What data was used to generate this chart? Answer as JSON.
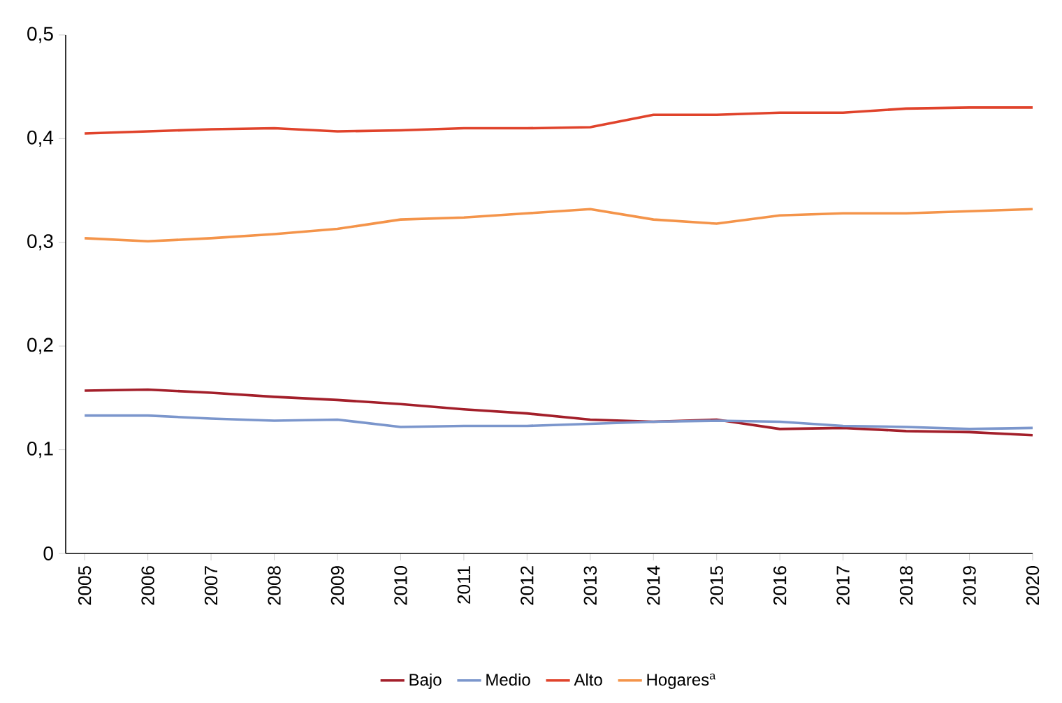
{
  "chart_data": {
    "type": "line",
    "x": [
      2005,
      2006,
      2007,
      2008,
      2009,
      2010,
      2011,
      2012,
      2013,
      2014,
      2015,
      2016,
      2017,
      2018,
      2019,
      2020
    ],
    "series": [
      {
        "name": "Bajo",
        "color": "#a31f2a",
        "values": [
          0.157,
          0.158,
          0.155,
          0.151,
          0.148,
          0.144,
          0.139,
          0.135,
          0.129,
          0.127,
          0.129,
          0.12,
          0.121,
          0.118,
          0.117,
          0.114
        ]
      },
      {
        "name": "Medio",
        "color": "#7b96cc",
        "values": [
          0.133,
          0.133,
          0.13,
          0.128,
          0.129,
          0.122,
          0.123,
          0.123,
          0.125,
          0.127,
          0.128,
          0.127,
          0.123,
          0.122,
          0.12,
          0.121
        ]
      },
      {
        "name": "Alto",
        "color": "#e0432b",
        "values": [
          0.405,
          0.407,
          0.409,
          0.41,
          0.407,
          0.408,
          0.41,
          0.41,
          0.411,
          0.423,
          0.423,
          0.425,
          0.425,
          0.429,
          0.43,
          0.43
        ]
      },
      {
        "name": "Hogares$^{a}$",
        "color": "#f4944a",
        "values": [
          0.304,
          0.301,
          0.304,
          0.308,
          0.313,
          0.322,
          0.324,
          0.328,
          0.332,
          0.322,
          0.318,
          0.326,
          0.328,
          0.328,
          0.33,
          0.332
        ]
      }
    ],
    "xlim": [
      2004.7,
      2020
    ],
    "xticks": [
      2005,
      2006,
      2007,
      2008,
      2009,
      2010,
      2011,
      2012,
      2013,
      2014,
      2015,
      2016,
      2017,
      2018,
      2019,
      2020
    ],
    "ylim": [
      0,
      0.5
    ],
    "yticks": [
      {
        "value": 0,
        "label": "0"
      },
      {
        "value": 0.1,
        "label": "0,1"
      },
      {
        "value": 0.2,
        "label": "0,2"
      },
      {
        "value": 0.3,
        "label": "0,3"
      },
      {
        "value": 0.4,
        "label": "0,4"
      },
      {
        "value": 0.5,
        "label": "0,5"
      }
    ],
    "grid": false,
    "legend": "bottom",
    "marker": "none",
    "line_style": "solid"
  }
}
